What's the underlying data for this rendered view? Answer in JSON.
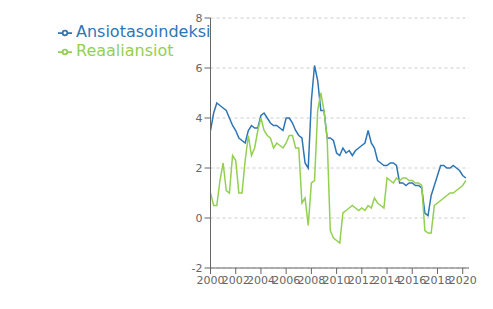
{
  "chart_data": {
    "type": "line",
    "x": [
      2000.0,
      2000.25,
      2000.5,
      2000.75,
      2001.0,
      2001.25,
      2001.5,
      2001.75,
      2002.0,
      2002.25,
      2002.5,
      2002.75,
      2003.0,
      2003.25,
      2003.5,
      2003.75,
      2004.0,
      2004.25,
      2004.5,
      2004.75,
      2005.0,
      2005.25,
      2005.5,
      2005.75,
      2006.0,
      2006.25,
      2006.5,
      2006.75,
      2007.0,
      2007.25,
      2007.5,
      2007.75,
      2008.0,
      2008.25,
      2008.5,
      2008.75,
      2009.0,
      2009.25,
      2009.5,
      2009.75,
      2010.0,
      2010.25,
      2010.5,
      2010.75,
      2011.0,
      2011.25,
      2011.5,
      2011.75,
      2012.0,
      2012.25,
      2012.5,
      2012.75,
      2013.0,
      2013.25,
      2013.5,
      2013.75,
      2014.0,
      2014.25,
      2014.5,
      2014.75,
      2015.0,
      2015.25,
      2015.5,
      2015.75,
      2016.0,
      2016.25,
      2016.5,
      2016.75,
      2017.0,
      2017.25,
      2017.5,
      2017.75,
      2018.0,
      2018.25,
      2018.5,
      2018.75,
      2019.0,
      2019.25,
      2019.5,
      2019.75,
      2020.0,
      2020.25
    ],
    "series": [
      {
        "name": "Ansiotasoindeksi",
        "color": "#2E75B6",
        "values": [
          3.5,
          4.2,
          4.6,
          4.5,
          4.4,
          4.3,
          4.0,
          3.7,
          3.5,
          3.2,
          3.1,
          3.0,
          3.5,
          3.7,
          3.6,
          3.6,
          4.1,
          4.2,
          4.0,
          3.8,
          3.7,
          3.7,
          3.6,
          3.5,
          4.0,
          4.0,
          3.8,
          3.5,
          3.3,
          3.2,
          2.2,
          2.0,
          4.7,
          6.1,
          5.5,
          4.3,
          4.3,
          3.2,
          3.2,
          3.1,
          2.6,
          2.5,
          2.8,
          2.6,
          2.7,
          2.5,
          2.7,
          2.8,
          2.9,
          3.0,
          3.5,
          3.0,
          2.8,
          2.3,
          2.2,
          2.1,
          2.1,
          2.2,
          2.2,
          2.1,
          1.4,
          1.4,
          1.3,
          1.4,
          1.4,
          1.3,
          1.3,
          1.2,
          0.2,
          0.1,
          0.9,
          1.3,
          1.7,
          2.1,
          2.1,
          2.0,
          2.0,
          2.1,
          2.0,
          1.9,
          1.7,
          1.6
        ]
      },
      {
        "name": "Reaaliansiot",
        "color": "#92D050",
        "values": [
          1.0,
          0.5,
          0.5,
          1.5,
          2.2,
          1.1,
          1.0,
          2.5,
          2.3,
          1.0,
          1.0,
          2.3,
          3.3,
          2.5,
          2.8,
          3.5,
          4.0,
          3.5,
          3.3,
          3.2,
          2.8,
          3.0,
          2.9,
          2.8,
          3.0,
          3.3,
          3.3,
          2.8,
          2.8,
          0.6,
          0.8,
          -0.3,
          1.4,
          1.5,
          4.3,
          5.0,
          4.3,
          3.2,
          -0.5,
          -0.8,
          -0.9,
          -1.0,
          0.2,
          0.3,
          0.4,
          0.5,
          0.4,
          0.3,
          0.4,
          0.3,
          0.5,
          0.4,
          0.8,
          0.6,
          0.5,
          0.4,
          1.6,
          1.5,
          1.4,
          1.6,
          1.5,
          1.6,
          1.6,
          1.5,
          1.5,
          1.4,
          1.4,
          1.3,
          -0.5,
          -0.6,
          -0.6,
          0.5,
          0.6,
          0.7,
          0.8,
          0.9,
          1.0,
          1.0,
          1.1,
          1.2,
          1.3,
          1.5
        ]
      }
    ],
    "xlim": [
      2000,
      2020.5
    ],
    "xticks": [
      2000,
      2002,
      2004,
      2006,
      2008,
      2010,
      2012,
      2014,
      2016,
      2018,
      2020
    ],
    "ylim": [
      -2,
      8
    ],
    "yticks": [
      -2,
      0,
      2,
      4,
      6,
      8
    ],
    "grid": true,
    "legend": "upper left"
  }
}
